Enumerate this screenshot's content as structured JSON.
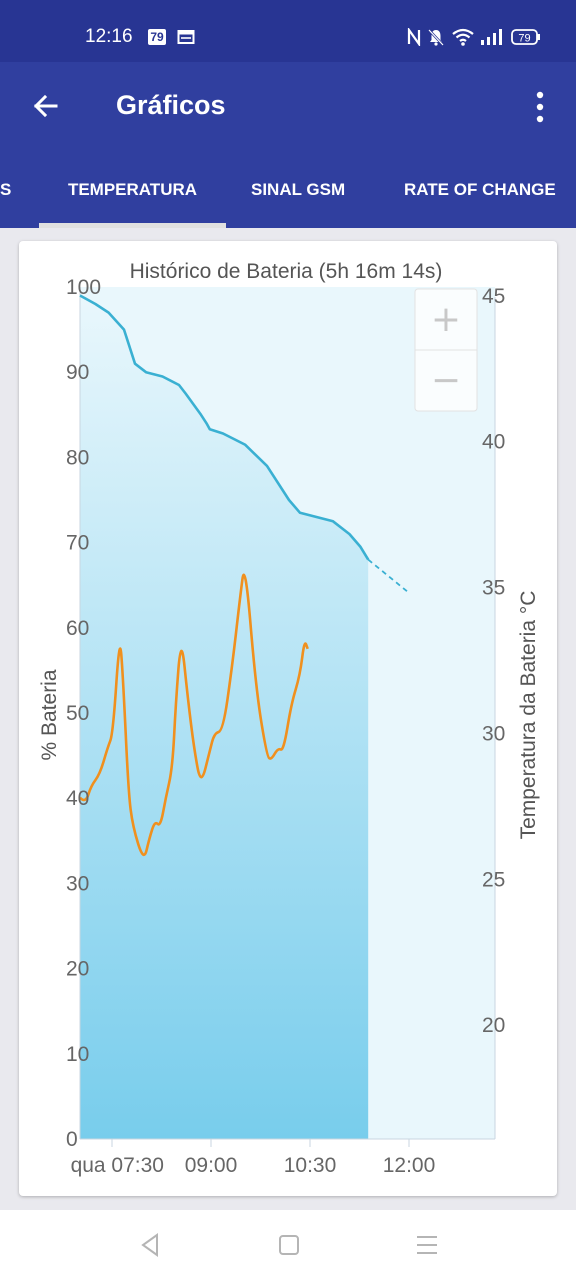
{
  "status_bar": {
    "time": "12:16",
    "notification_badge": "79",
    "battery_level": "79",
    "icons": [
      "notification-badge-icon",
      "calendar-icon",
      "nfc-icon",
      "silent-bell-icon",
      "wifi-icon",
      "signal-icon",
      "battery-icon"
    ]
  },
  "app_bar": {
    "title": "Gráficos",
    "back_icon": "arrow-left-icon",
    "menu_icon": "more-vert-icon"
  },
  "tabs": [
    {
      "label": "S",
      "active": false
    },
    {
      "label": "TEMPERATURA",
      "active": true
    },
    {
      "label": "SINAL GSM",
      "active": false
    },
    {
      "label": "RATE OF CHANGE",
      "active": false
    }
  ],
  "zoom_controls": {
    "zoom_in": "+",
    "zoom_out": "−"
  },
  "colors": {
    "status_bar": "#283593",
    "app_bar": "#303f9f",
    "battery_line": "#3ab0d2",
    "temperature_line": "#f0901e",
    "area_top": "#e9f7fc",
    "area_bottom": "#78cdec"
  },
  "chart_data": {
    "type": "line",
    "title": "Histórico de Bateria (5h 16m 14s)",
    "ylabel": "% Bateria",
    "y2label": "Temperatura da Bateria °C",
    "xticks": [
      "qua 07:30",
      "09:00",
      "10:30",
      "12:00"
    ],
    "yticks": [
      0,
      10,
      20,
      30,
      40,
      50,
      60,
      70,
      80,
      90,
      100
    ],
    "y2ticks": [
      20,
      25,
      30,
      35,
      40,
      45
    ],
    "ylim": [
      0,
      100
    ],
    "y2lim": [
      16.1,
      45.3
    ],
    "grid": false,
    "x_unit": "minutes after 07:00",
    "xlim": [
      0,
      316
    ],
    "series": [
      {
        "axis": "left",
        "values": [
          [
            0,
            99
          ],
          [
            14,
            98
          ],
          [
            26,
            97
          ],
          [
            40,
            95
          ],
          [
            50,
            91
          ],
          [
            60,
            90
          ],
          [
            75,
            89.5
          ],
          [
            90,
            88.5
          ],
          [
            96,
            87.5
          ],
          [
            110,
            85
          ],
          [
            115,
            84
          ],
          [
            118,
            83.3
          ],
          [
            130,
            82.8
          ],
          [
            150,
            81.5
          ],
          [
            170,
            79
          ],
          [
            190,
            75
          ],
          [
            200,
            73.5
          ],
          [
            230,
            72.5
          ],
          [
            245,
            71
          ],
          [
            255,
            69.5
          ],
          [
            262,
            68
          ]
        ]
      },
      {
        "axis": "left",
        "projected": true,
        "values": [
          [
            262,
            68
          ],
          [
            300,
            64
          ]
        ]
      },
      {
        "axis": "right",
        "values": [
          [
            0,
            27.8
          ],
          [
            5,
            27.6
          ],
          [
            10,
            28.2
          ],
          [
            18,
            28.6
          ],
          [
            25,
            29.5
          ],
          [
            30,
            30
          ],
          [
            36,
            33.4
          ],
          [
            39,
            32
          ],
          [
            44,
            28
          ],
          [
            48,
            26.8
          ],
          [
            58,
            25.6
          ],
          [
            63,
            26.4
          ],
          [
            68,
            27
          ],
          [
            73,
            26.8
          ],
          [
            78,
            27.8
          ],
          [
            84,
            28.8
          ],
          [
            87,
            31
          ],
          [
            92,
            33.4
          ],
          [
            98,
            31.2
          ],
          [
            104,
            29.4
          ],
          [
            110,
            28.2
          ],
          [
            118,
            29.4
          ],
          [
            122,
            30
          ],
          [
            130,
            30.1
          ],
          [
            138,
            32.2
          ],
          [
            145,
            34.5
          ],
          [
            150,
            36
          ],
          [
            160,
            31.5
          ],
          [
            170,
            29.2
          ],
          [
            174,
            29.1
          ],
          [
            180,
            29.5
          ],
          [
            185,
            29.4
          ],
          [
            192,
            31
          ],
          [
            200,
            32
          ],
          [
            204,
            33.2
          ],
          [
            207,
            32.9
          ]
        ]
      }
    ]
  }
}
